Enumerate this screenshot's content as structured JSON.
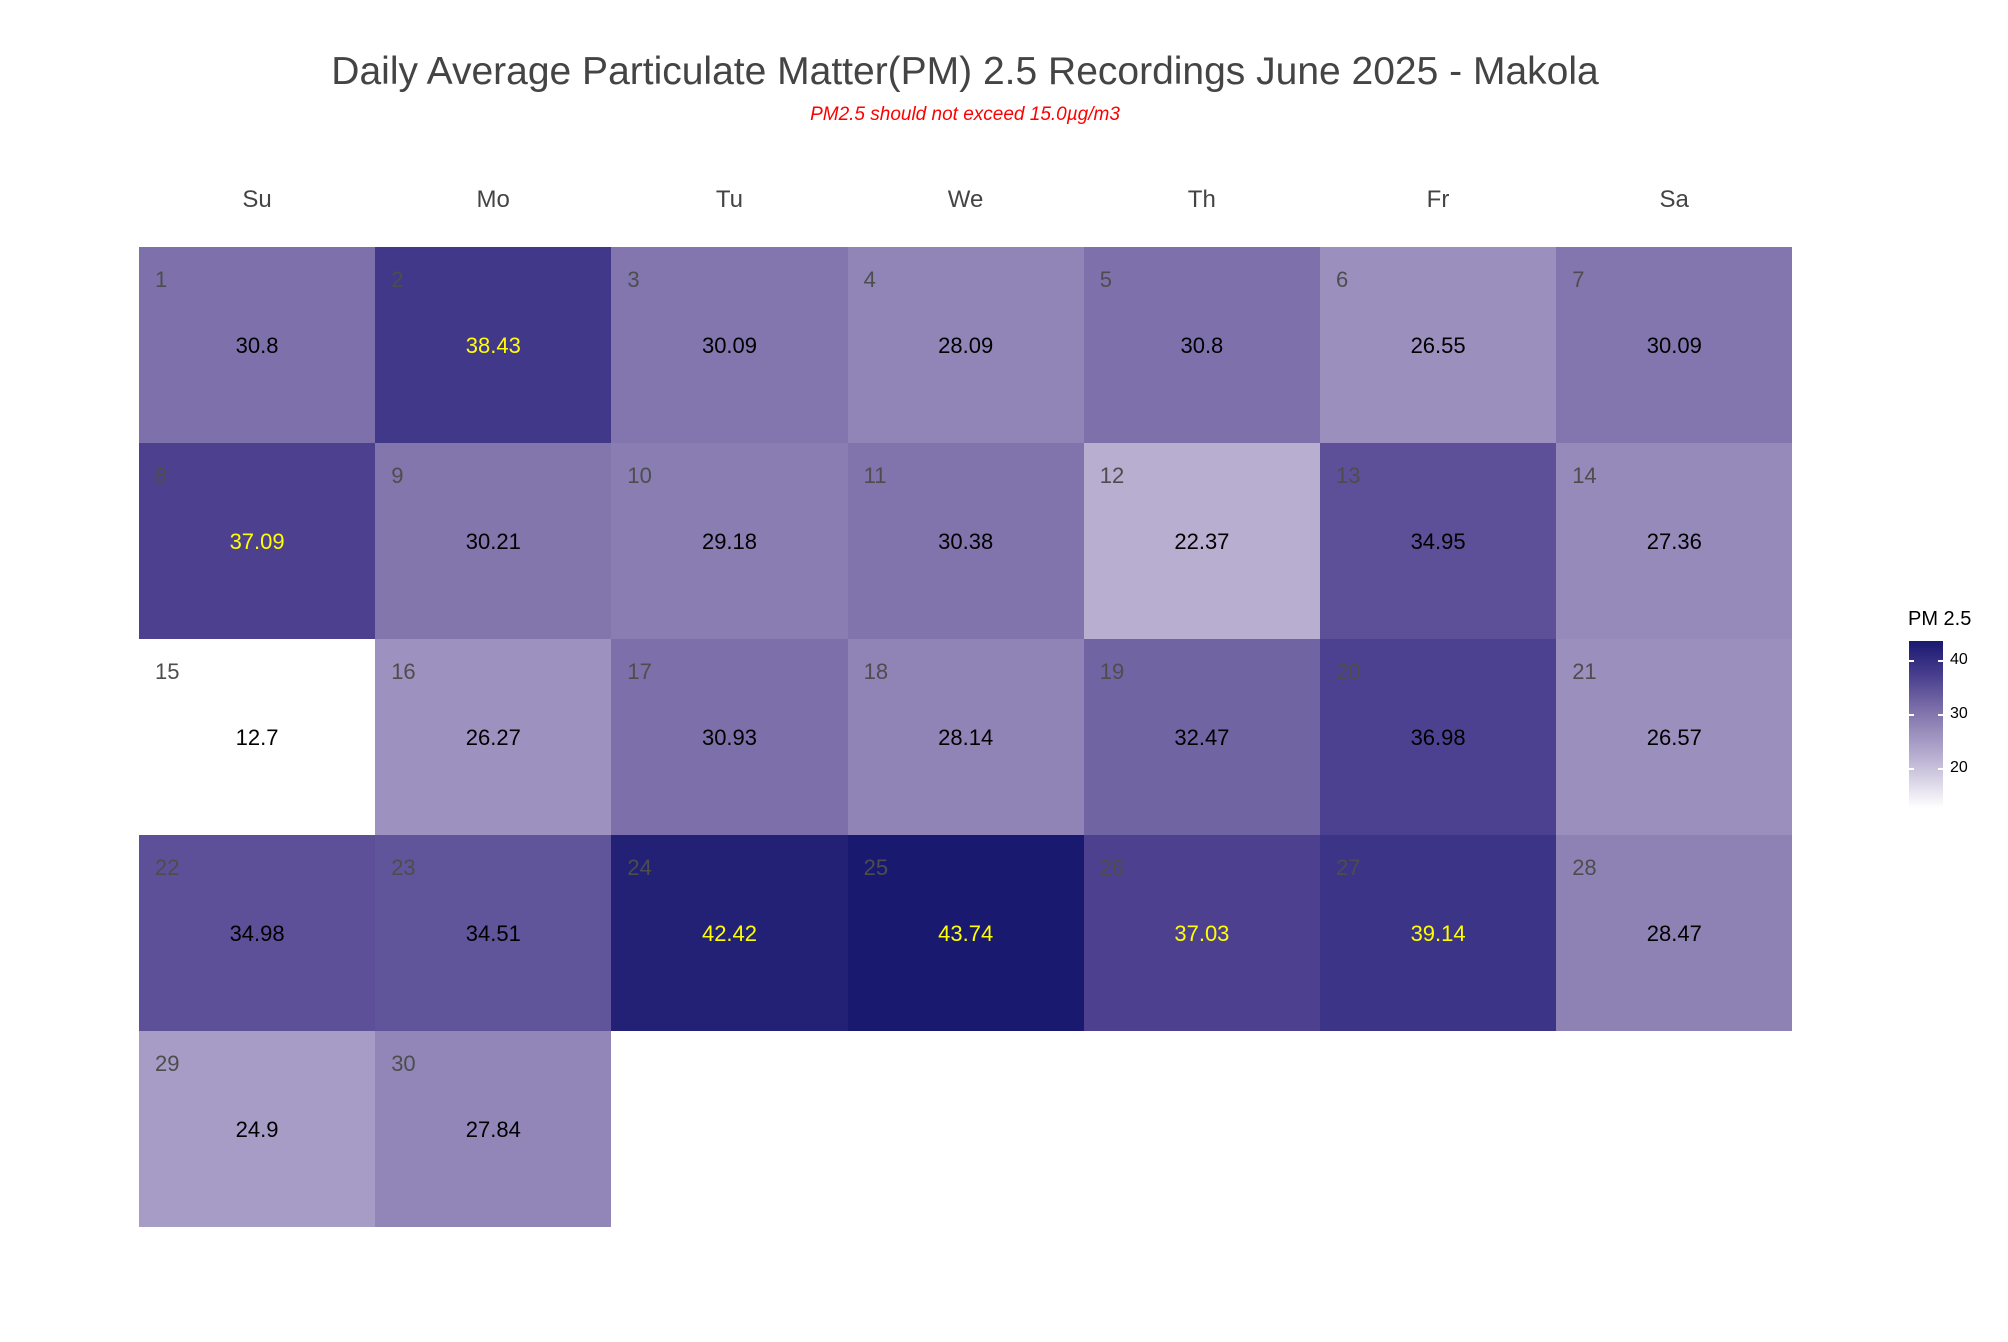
{
  "chart_data": {
    "type": "heatmap",
    "title": "Daily Average Particulate Matter(PM) 2.5 Recordings June 2025 -  Makola",
    "subtitle": "PM2.5 should not exceed 15.0µg/m3",
    "weekdays": [
      "Su",
      "Mo",
      "Tu",
      "We",
      "Th",
      "Fr",
      "Sa"
    ],
    "first_weekday_index": 0,
    "days": [
      1,
      2,
      3,
      4,
      5,
      6,
      7,
      8,
      9,
      10,
      11,
      12,
      13,
      14,
      15,
      16,
      17,
      18,
      19,
      20,
      21,
      22,
      23,
      24,
      25,
      26,
      27,
      28,
      29,
      30
    ],
    "day_labels": [
      "1",
      "2",
      "3",
      "4",
      "5",
      "6",
      "7",
      "8",
      "9",
      "10",
      "11",
      "12",
      "13",
      "14",
      "15",
      "16",
      "17",
      "18",
      "19",
      "20",
      "21",
      "22",
      "23",
      "24",
      "25",
      "26",
      "27",
      "28",
      "29",
      "30"
    ],
    "values": [
      30.8,
      38.43,
      30.09,
      28.09,
      30.8,
      26.55,
      30.09,
      37.09,
      30.21,
      29.18,
      30.38,
      22.37,
      34.95,
      27.36,
      12.7,
      26.27,
      30.93,
      28.14,
      32.47,
      36.98,
      26.57,
      34.98,
      34.51,
      42.42,
      43.74,
      37.03,
      39.14,
      28.47,
      24.9,
      27.84
    ],
    "value_labels": [
      "30.8",
      "38.43",
      "30.09",
      "28.09",
      "30.8",
      "26.55",
      "30.09",
      "37.09",
      "30.21",
      "29.18",
      "30.38",
      "22.37",
      "34.95",
      "27.36",
      "12.7",
      "26.27",
      "30.93",
      "28.14",
      "32.47",
      "36.98",
      "26.57",
      "34.98",
      "34.51",
      "42.42",
      "43.74",
      "37.03",
      "39.14",
      "28.47",
      "24.9",
      "27.84"
    ],
    "highlight_threshold": 37,
    "legend": {
      "title": "PM 2.5",
      "ticks": [
        40,
        30,
        20
      ],
      "tick_labels": [
        "40",
        "30",
        "20"
      ],
      "range": [
        12.7,
        43.74
      ],
      "placement": "right"
    },
    "colors": {
      "low": "#ffffff",
      "high": "#191970",
      "label_normal": "#000000",
      "label_high": "#ffff00",
      "subtitle": "#ff0000"
    }
  }
}
